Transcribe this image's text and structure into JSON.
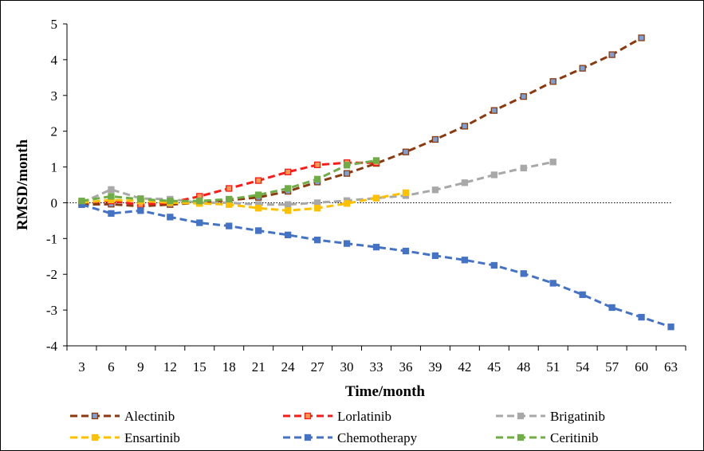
{
  "chart_data": {
    "type": "line",
    "title": "",
    "xlabel": "Time/month",
    "ylabel": "RMSD/month",
    "ylim": [
      -4,
      5
    ],
    "yticks": [
      -4,
      -3,
      -2,
      -1,
      0,
      1,
      2,
      3,
      4,
      5
    ],
    "x": [
      3,
      6,
      9,
      12,
      15,
      18,
      21,
      24,
      27,
      30,
      33,
      36,
      39,
      42,
      45,
      48,
      51,
      54,
      57,
      60,
      63
    ],
    "zero_line": "dotted",
    "legend_position": "bottom",
    "series": [
      {
        "name": "Alectinib",
        "color": "#8B3A0F",
        "marker_fill": "#7F9FD0",
        "x": [
          3,
          6,
          9,
          12,
          15,
          18,
          21,
          24,
          27,
          30,
          33,
          36,
          39,
          42,
          45,
          48,
          51,
          54,
          57,
          60
        ],
        "values": [
          -0.05,
          -0.04,
          -0.1,
          -0.05,
          0.0,
          0.07,
          0.15,
          0.32,
          0.58,
          0.82,
          1.1,
          1.42,
          1.77,
          2.14,
          2.58,
          2.97,
          3.39,
          3.76,
          4.14,
          4.61
        ]
      },
      {
        "name": "Lorlatinib",
        "color": "#FF1A1A",
        "marker_fill": "#F29A52",
        "x": [
          3,
          6,
          9,
          12,
          15,
          18,
          21,
          24,
          27,
          30,
          33
        ],
        "values": [
          0.0,
          0.05,
          -0.05,
          0.0,
          0.18,
          0.4,
          0.62,
          0.86,
          1.06,
          1.12,
          1.12
        ]
      },
      {
        "name": "Brigatinib",
        "color": "#A8A8A8",
        "marker_fill": "#A8A8A8",
        "x": [
          3,
          6,
          9,
          12,
          15,
          18,
          21,
          24,
          27,
          30,
          33,
          36,
          39,
          42,
          45,
          48,
          51
        ],
        "values": [
          0.0,
          0.37,
          0.12,
          0.1,
          0.0,
          0.0,
          -0.05,
          -0.05,
          0.0,
          0.06,
          0.13,
          0.2,
          0.36,
          0.56,
          0.78,
          0.97,
          1.14
        ]
      },
      {
        "name": "Ensartinib",
        "color": "#FFC000",
        "marker_fill": "#FFC000",
        "x": [
          3,
          6,
          9,
          12,
          15,
          18,
          21,
          24,
          27,
          30,
          33,
          36
        ],
        "values": [
          0.0,
          0.08,
          0.05,
          0.0,
          -0.02,
          -0.05,
          -0.15,
          -0.22,
          -0.15,
          -0.02,
          0.13,
          0.28
        ]
      },
      {
        "name": "Chemotherapy",
        "color": "#4472C4",
        "marker_fill": "#4472C4",
        "x": [
          3,
          6,
          9,
          12,
          15,
          18,
          21,
          24,
          27,
          30,
          33,
          36,
          39,
          42,
          45,
          48,
          51,
          54,
          57,
          60,
          63
        ],
        "values": [
          -0.05,
          -0.3,
          -0.22,
          -0.4,
          -0.56,
          -0.65,
          -0.78,
          -0.9,
          -1.04,
          -1.14,
          -1.24,
          -1.35,
          -1.48,
          -1.6,
          -1.75,
          -1.98,
          -2.25,
          -2.57,
          -2.93,
          -3.2,
          -3.47
        ]
      },
      {
        "name": "Ceritinib",
        "color": "#70AD47",
        "marker_fill": "#70AD47",
        "x": [
          3,
          6,
          9,
          12,
          15,
          18,
          21,
          24,
          27,
          30,
          33
        ],
        "values": [
          0.05,
          0.18,
          0.1,
          0.05,
          0.05,
          0.1,
          0.22,
          0.4,
          0.66,
          1.05,
          1.18
        ]
      }
    ]
  }
}
